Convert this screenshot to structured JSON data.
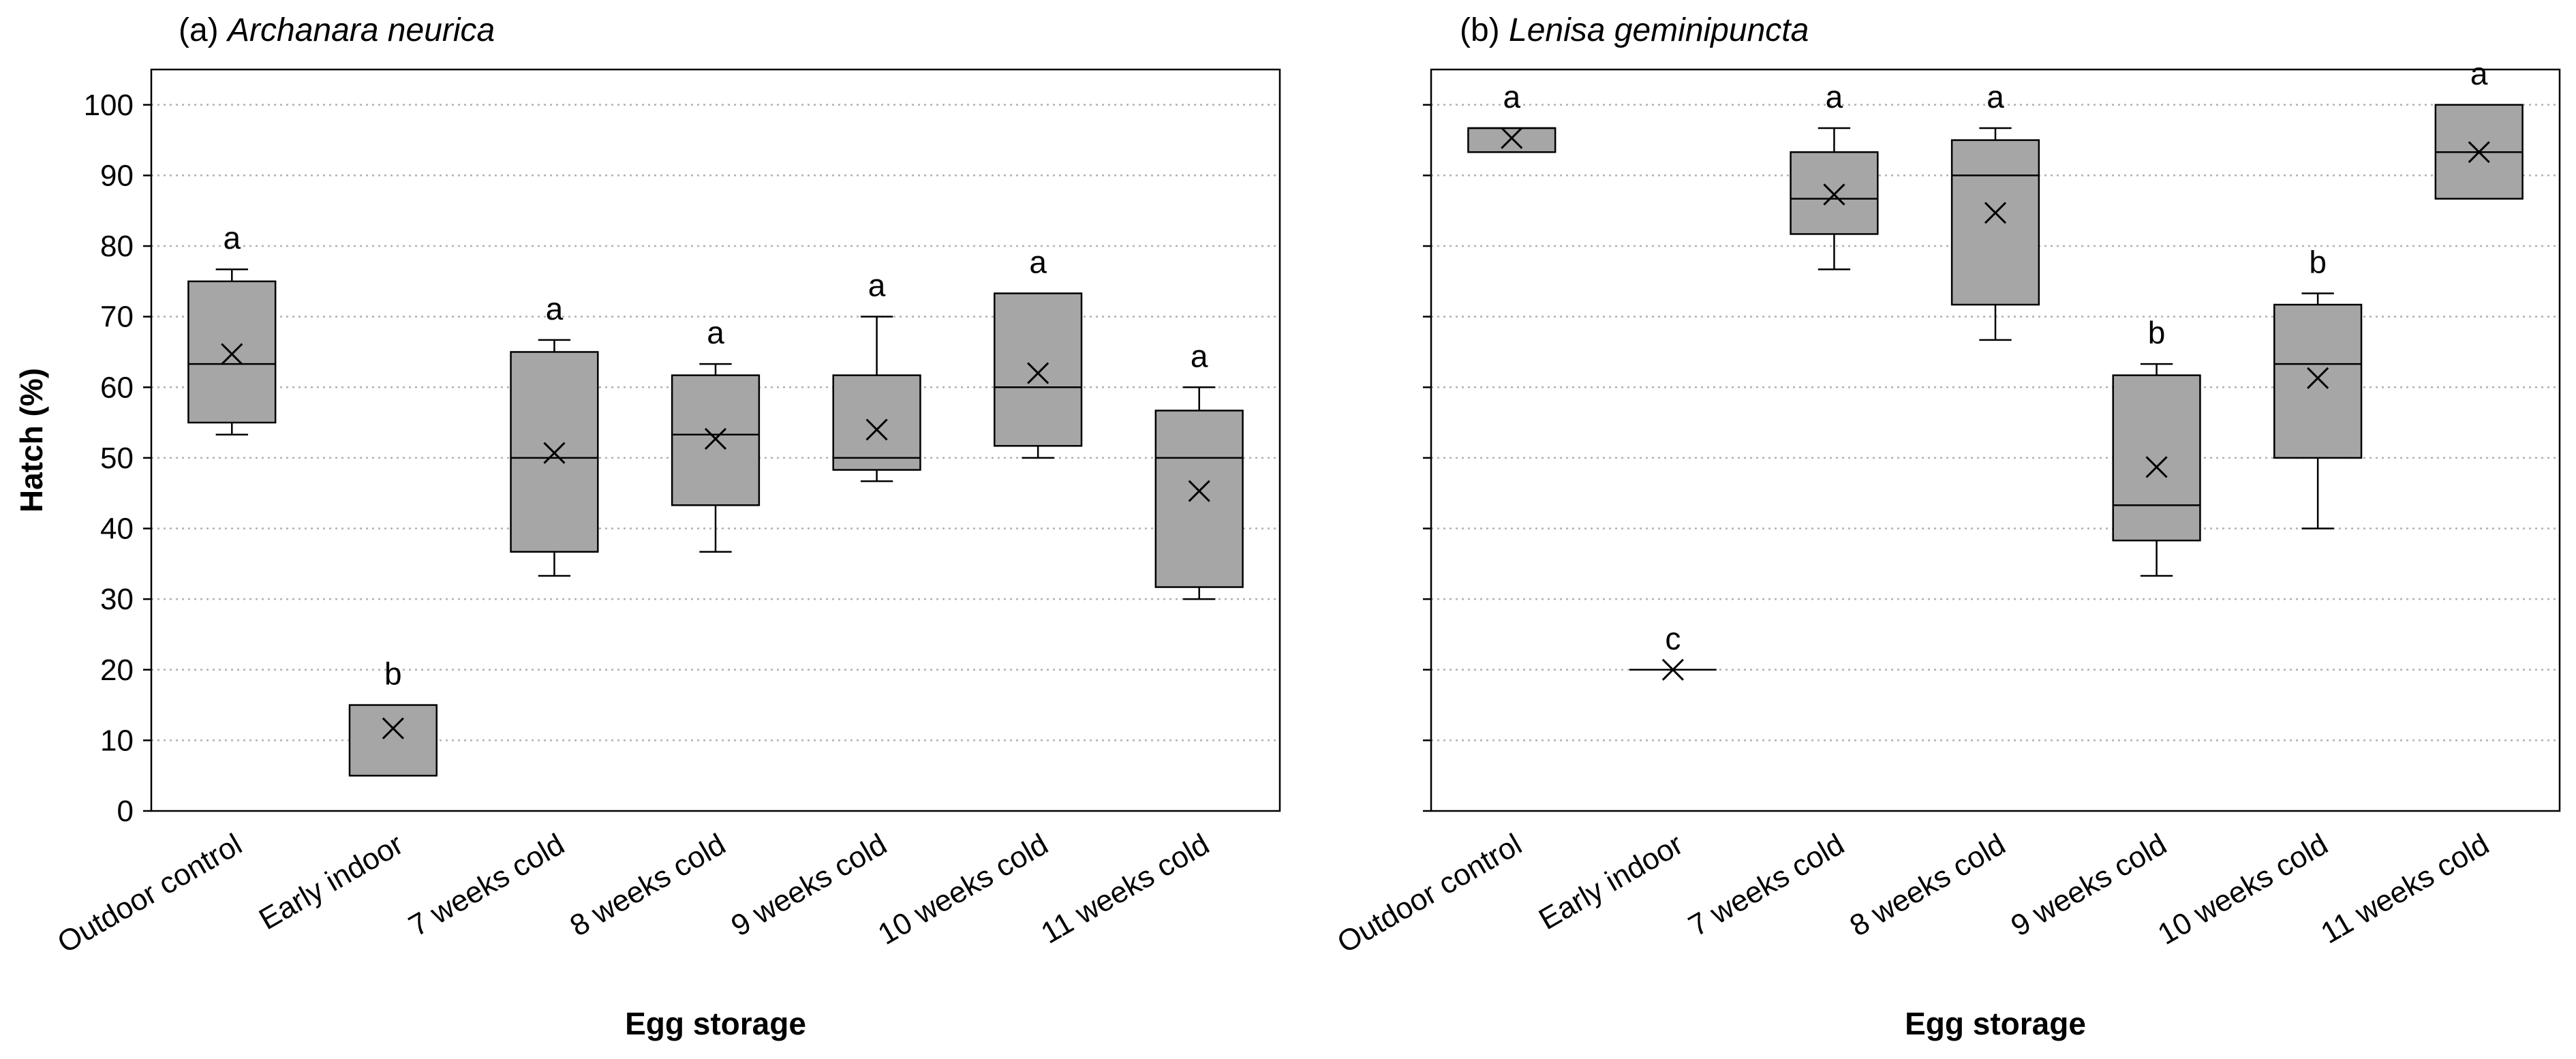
{
  "chart_data": [
    {
      "type": "box",
      "title_prefix": "(a) ",
      "title_species": "Archanara neurica",
      "xlabel": "Egg storage",
      "ylabel": "Hatch (%)",
      "ylim": [
        0,
        105
      ],
      "yticks": [
        0,
        10,
        20,
        30,
        40,
        50,
        60,
        70,
        80,
        90,
        100
      ],
      "show_yticklabels": true,
      "grid": "horizontal dotted",
      "box_color": "#a6a6a6",
      "categories": [
        "Outdoor control",
        "Early indoor",
        "7 weeks cold",
        "8 weeks cold",
        "9 weeks cold",
        "10 weeks cold",
        "11 weeks cold"
      ],
      "boxes": [
        {
          "min": 53.3,
          "q1": 55,
          "median": 63.3,
          "q3": 75,
          "max": 76.7,
          "mean": 64.7,
          "letter": "a"
        },
        {
          "min": 5,
          "q1": 5,
          "median": 5,
          "q3": 15,
          "max": 15,
          "mean": 11.7,
          "letter": "b"
        },
        {
          "min": 33.3,
          "q1": 36.7,
          "median": 50,
          "q3": 65,
          "max": 66.7,
          "mean": 50.7,
          "letter": "a"
        },
        {
          "min": 36.7,
          "q1": 43.3,
          "median": 53.3,
          "q3": 61.7,
          "max": 63.3,
          "mean": 52.7,
          "letter": "a"
        },
        {
          "min": 46.7,
          "q1": 48.3,
          "median": 50,
          "q3": 61.7,
          "max": 70,
          "mean": 54,
          "letter": "a"
        },
        {
          "min": 50,
          "q1": 51.7,
          "median": 60,
          "q3": 73.3,
          "max": 73.3,
          "mean": 62,
          "letter": "a"
        },
        {
          "min": 30,
          "q1": 31.7,
          "median": 50,
          "q3": 56.7,
          "max": 60,
          "mean": 45.3,
          "letter": "a"
        }
      ]
    },
    {
      "type": "box",
      "title_prefix": "(b) ",
      "title_species": "Lenisa geminipuncta",
      "xlabel": "Egg storage",
      "ylabel": "",
      "ylim": [
        0,
        105
      ],
      "yticks": [
        0,
        10,
        20,
        30,
        40,
        50,
        60,
        70,
        80,
        90,
        100
      ],
      "show_yticklabels": false,
      "grid": "horizontal dotted",
      "box_color": "#a6a6a6",
      "categories": [
        "Outdoor control",
        "Early indoor",
        "7 weeks cold",
        "8 weeks cold",
        "9 weeks cold",
        "10 weeks cold",
        "11 weeks cold"
      ],
      "boxes": [
        {
          "min": 93.3,
          "q1": 93.3,
          "median": 96.7,
          "q3": 96.7,
          "max": 96.7,
          "mean": 95.3,
          "letter": "a"
        },
        {
          "min": 20,
          "q1": 20,
          "median": 20,
          "q3": 20,
          "max": 20,
          "mean": 20,
          "letter": "c"
        },
        {
          "min": 76.7,
          "q1": 81.7,
          "median": 86.7,
          "q3": 93.3,
          "max": 96.7,
          "mean": 87.3,
          "letter": "a"
        },
        {
          "min": 66.7,
          "q1": 71.7,
          "median": 90,
          "q3": 95,
          "max": 96.7,
          "mean": 84.7,
          "letter": "a"
        },
        {
          "min": 33.3,
          "q1": 38.3,
          "median": 43.3,
          "q3": 61.7,
          "max": 63.3,
          "mean": 48.7,
          "letter": "b"
        },
        {
          "min": 40,
          "q1": 50,
          "median": 63.3,
          "q3": 71.7,
          "max": 73.3,
          "mean": 61.3,
          "letter": "b"
        },
        {
          "min": 86.7,
          "q1": 86.7,
          "median": 93.3,
          "q3": 100,
          "max": 100,
          "mean": 93.3,
          "letter": "a"
        }
      ]
    }
  ]
}
